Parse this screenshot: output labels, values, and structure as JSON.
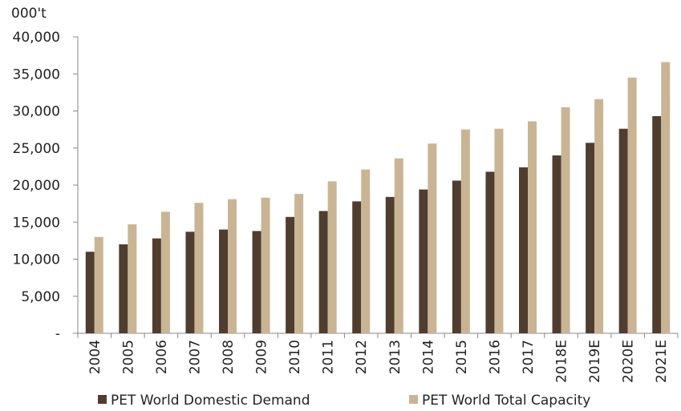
{
  "chart_data": {
    "type": "bar",
    "y_label": "000't",
    "categories": [
      "2004",
      "2005",
      "2006",
      "2007",
      "2008",
      "2009",
      "2010",
      "2011",
      "2012",
      "2013",
      "2014",
      "2015",
      "2016",
      "2017",
      "2018E",
      "2019E",
      "2020E",
      "2021E"
    ],
    "series": [
      {
        "name": "PET World Domestic Demand",
        "color": "#4f3d30",
        "values": [
          11000,
          12000,
          12800,
          13700,
          14000,
          13800,
          15700,
          16500,
          17800,
          18400,
          19400,
          20600,
          21800,
          22400,
          24000,
          25700,
          27600,
          29300
        ]
      },
      {
        "name": "PET World Total Capacity",
        "color": "#c9b593",
        "values": [
          13000,
          14700,
          16400,
          17600,
          18100,
          18300,
          18800,
          20500,
          22100,
          23600,
          25600,
          27500,
          27600,
          28600,
          30500,
          31600,
          34500,
          36600
        ]
      }
    ],
    "ylim": [
      0,
      40000
    ],
    "yticks": [
      {
        "value": 0,
        "label": "-"
      },
      {
        "value": 5000,
        "label": "5,000"
      },
      {
        "value": 10000,
        "label": "10,000"
      },
      {
        "value": 15000,
        "label": "15,000"
      },
      {
        "value": 20000,
        "label": "20,000"
      },
      {
        "value": 25000,
        "label": "25,000"
      },
      {
        "value": 30000,
        "label": "30,000"
      },
      {
        "value": 35000,
        "label": "35,000"
      },
      {
        "value": 40000,
        "label": "40,000"
      }
    ],
    "legend": "bottom"
  }
}
